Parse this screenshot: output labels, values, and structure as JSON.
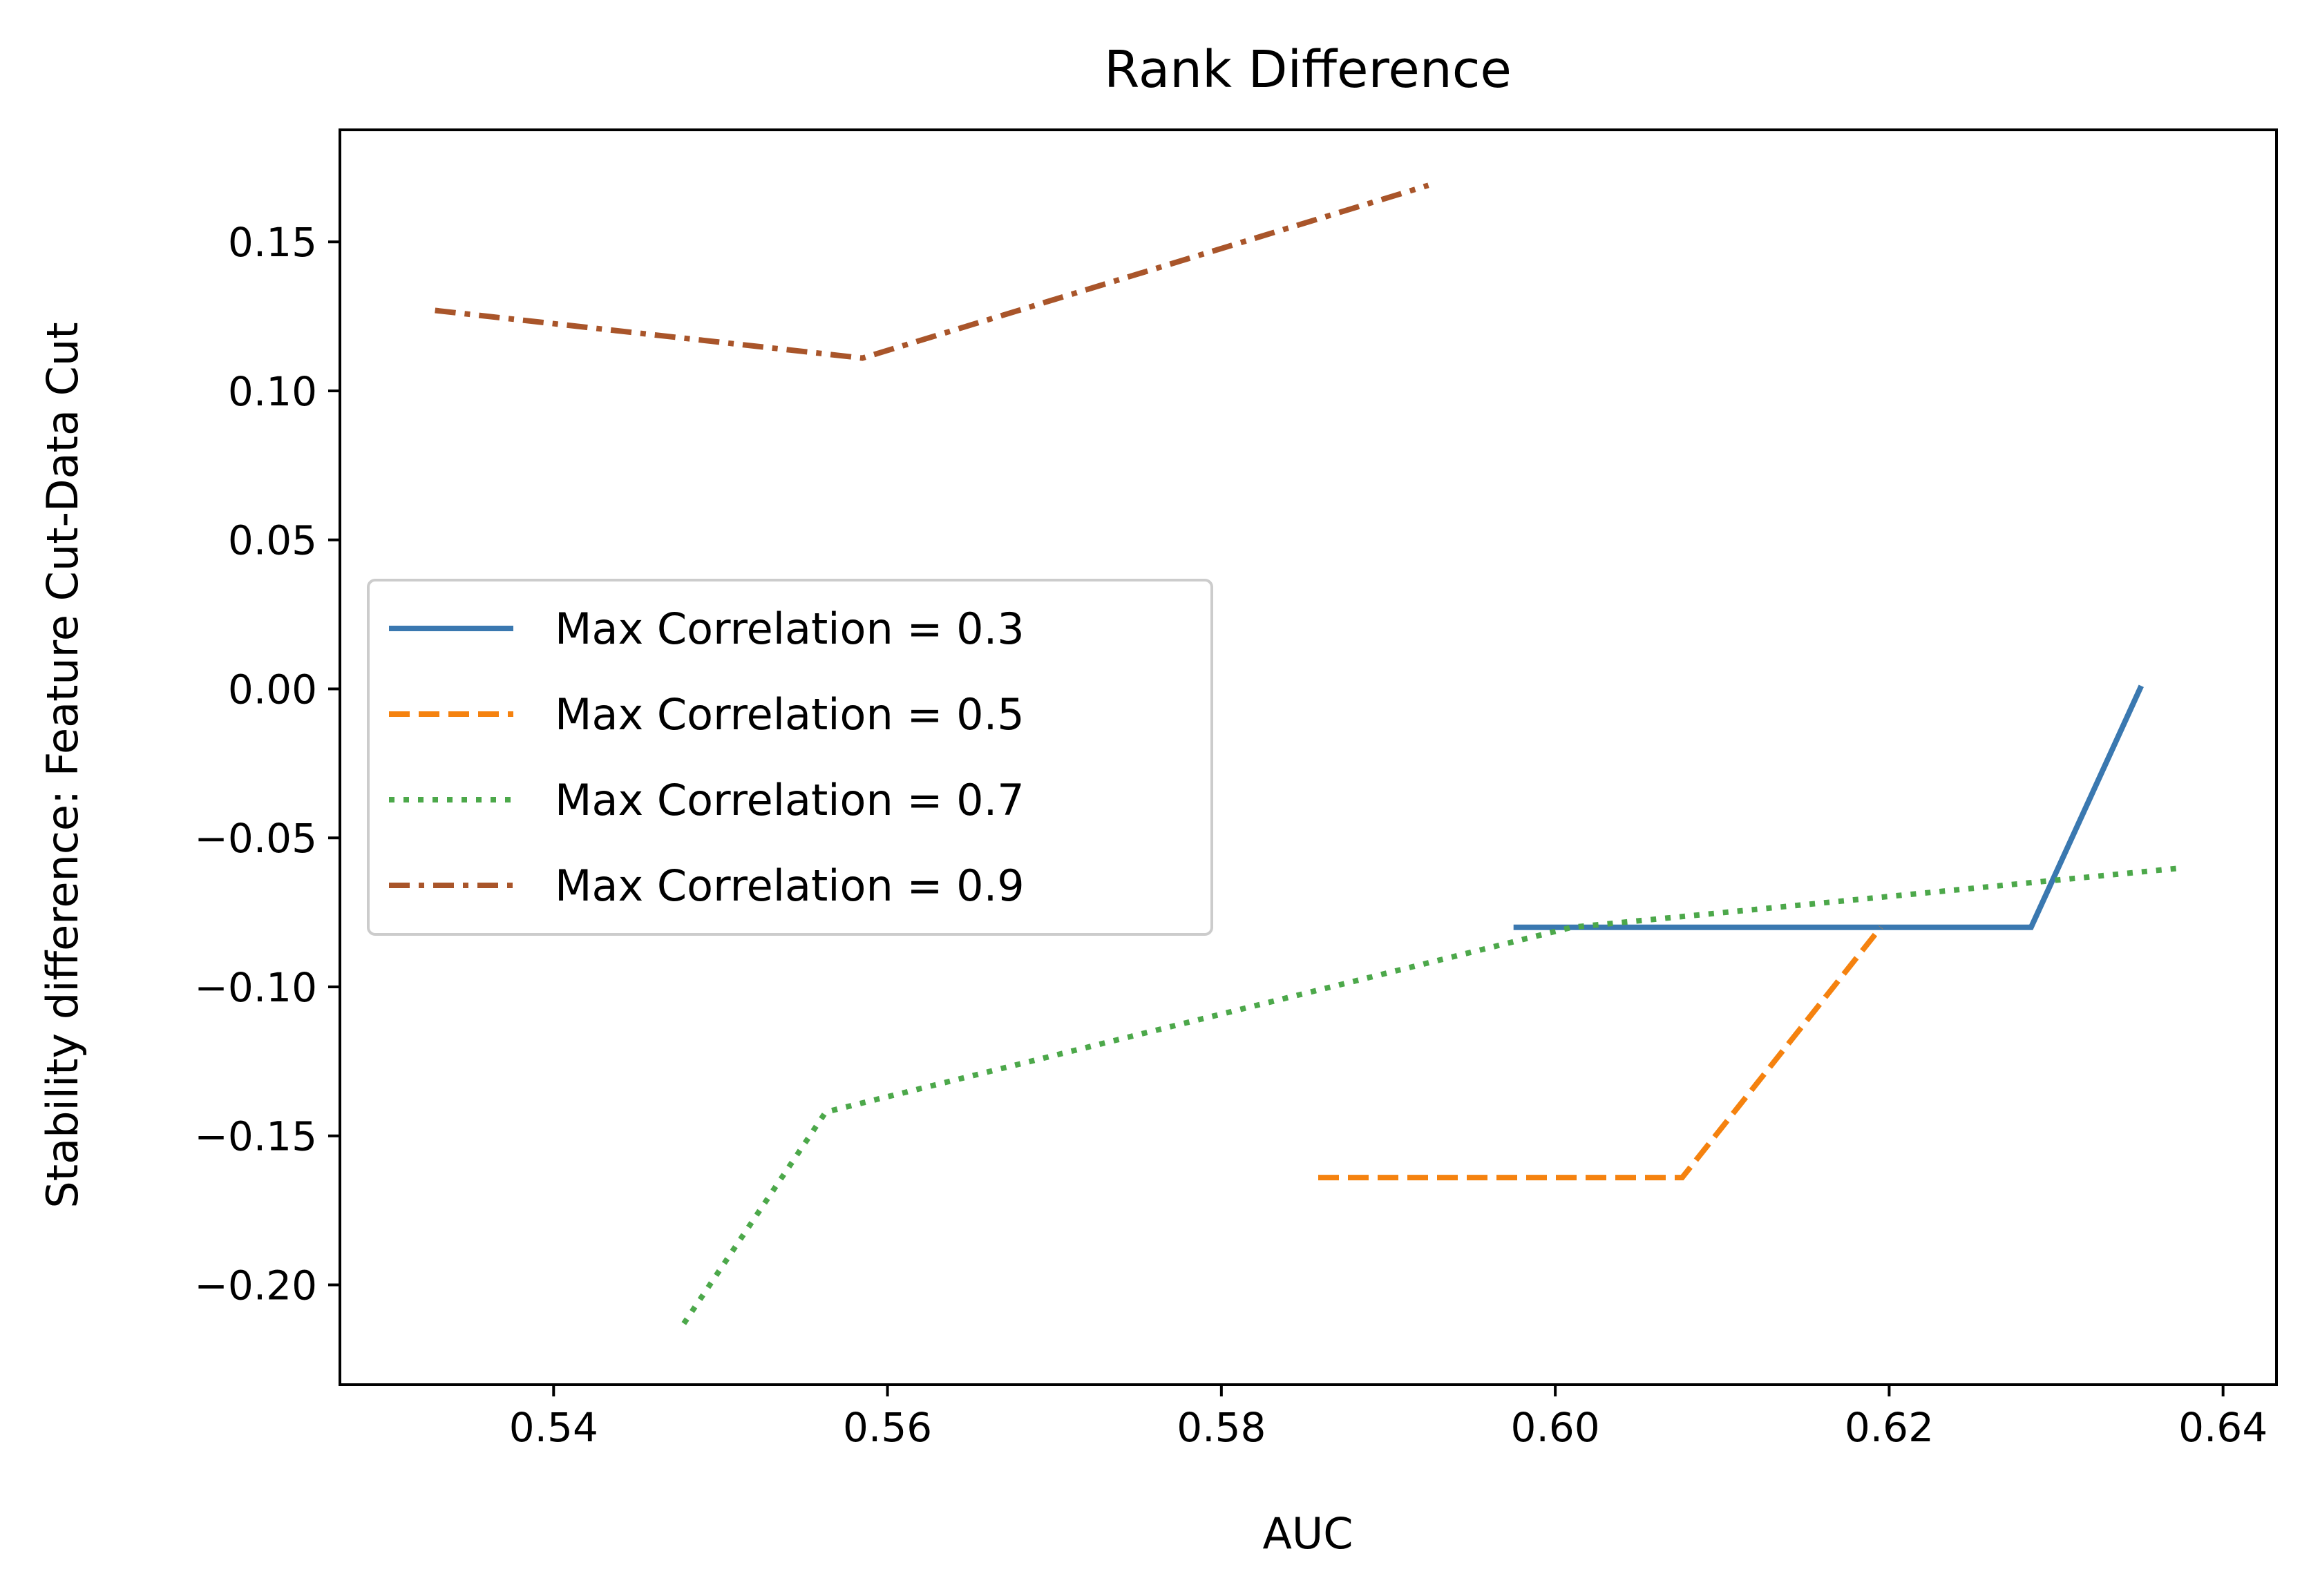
{
  "chart_data": {
    "type": "line",
    "title": "Rank Difference",
    "xlabel": "AUC",
    "ylabel": "Stability difference: Feature Cut-Data Cut",
    "xlim": [
      0.5272,
      0.6432
    ],
    "ylim": [
      -0.2335,
      0.1876
    ],
    "xticks": [
      0.54,
      0.56,
      0.58,
      0.6,
      0.62,
      0.64
    ],
    "xtick_labels": [
      "0.54",
      "0.56",
      "0.58",
      "0.60",
      "0.62",
      "0.64"
    ],
    "yticks": [
      0.15,
      0.1,
      0.05,
      0.0,
      -0.05,
      -0.1,
      -0.15,
      -0.2
    ],
    "ytick_labels": [
      "0.15",
      "0.10",
      "0.05",
      "0.00",
      "−0.05",
      "−0.10",
      "−0.15",
      "−0.20"
    ],
    "grid": false,
    "legend_position": "center-left",
    "series": [
      {
        "name": "Max Correlation = 0.3",
        "color": "#3a78b0",
        "dash": "solid",
        "points": [
          [
            0.5975,
            -0.08
          ],
          [
            0.6285,
            -0.08
          ],
          [
            0.6351,
            0.001
          ]
        ]
      },
      {
        "name": "Max Correlation = 0.5",
        "color": "#f5820f",
        "dash": "dashed",
        "points": [
          [
            0.5858,
            -0.164
          ],
          [
            0.6076,
            -0.164
          ],
          [
            0.6195,
            -0.08
          ]
        ]
      },
      {
        "name": "Max Correlation = 0.7",
        "color": "#4ca84a",
        "dash": "dotted",
        "points": [
          [
            0.5478,
            -0.213
          ],
          [
            0.5563,
            -0.142
          ],
          [
            0.601,
            -0.08
          ],
          [
            0.6377,
            -0.06
          ]
        ]
      },
      {
        "name": "Max Correlation = 0.9",
        "color": "#a9552a",
        "dash": "dashdot",
        "points": [
          [
            0.5329,
            0.127
          ],
          [
            0.5585,
            0.111
          ],
          [
            0.5924,
            0.169
          ]
        ]
      }
    ]
  }
}
